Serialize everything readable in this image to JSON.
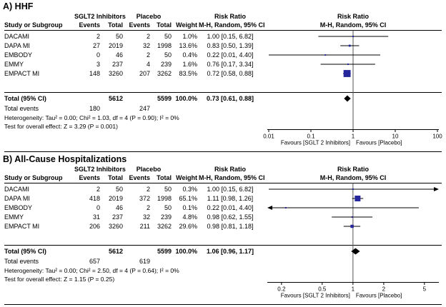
{
  "colors": {
    "marker": "#26269c",
    "diamond": "#000000",
    "line": "#000000"
  },
  "chart_data": [
    {
      "type": "forest",
      "title": "A) HHF",
      "group_headers": {
        "treatment": "SGLT2 Inhibitors",
        "control": "Placebo",
        "risk_ratio": "Risk Ratio"
      },
      "column_headers": {
        "study": "Study or Subgroup",
        "events": "Events",
        "total": "Total",
        "weight": "Weight",
        "mh": "M-H, Random, 95% CI"
      },
      "studies": [
        {
          "name": "DACAMI",
          "events_t": "2",
          "total_t": "50",
          "events_c": "2",
          "total_c": "50",
          "weight": "1.0%",
          "rr_text": "1.00 [0.15, 6.82]",
          "rr": 1.0,
          "lo": 0.15,
          "hi": 6.82
        },
        {
          "name": "DAPA MI",
          "events_t": "27",
          "total_t": "2019",
          "events_c": "32",
          "total_c": "1998",
          "weight": "13.6%",
          "rr_text": "0.83 [0.50, 1.39]",
          "rr": 0.83,
          "lo": 0.5,
          "hi": 1.39
        },
        {
          "name": "EMBODY",
          "events_t": "0",
          "total_t": "46",
          "events_c": "2",
          "total_c": "50",
          "weight": "0.4%",
          "rr_text": "0.22 [0.01, 4.40]",
          "rr": 0.22,
          "lo": 0.01,
          "hi": 4.4
        },
        {
          "name": "EMMY",
          "events_t": "3",
          "total_t": "237",
          "events_c": "4",
          "total_c": "239",
          "weight": "1.6%",
          "rr_text": "0.76 [0.17, 3.34]",
          "rr": 0.76,
          "lo": 0.17,
          "hi": 3.34
        },
        {
          "name": "EMPACT MI",
          "events_t": "148",
          "total_t": "3260",
          "events_c": "207",
          "total_c": "3262",
          "weight": "83.5%",
          "rr_text": "0.72 [0.58, 0.88]",
          "rr": 0.72,
          "lo": 0.58,
          "hi": 0.88
        }
      ],
      "total": {
        "label": "Total (95% CI)",
        "total_t": "5612",
        "total_c": "5599",
        "weight": "100.0%",
        "rr_text": "0.73 [0.61, 0.88]",
        "rr": 0.73,
        "lo": 0.61,
        "hi": 0.88
      },
      "total_events": {
        "label": "Total events",
        "events_t": "180",
        "events_c": "247"
      },
      "heterogeneity": "Heterogeneity: Tau² = 0.00; Chi² = 1.03, df = 4 (P = 0.90); I² = 0%",
      "overall_effect": "Test for overall effect: Z = 3.29 (P = 0.001)",
      "axis": {
        "min": 0.01,
        "max": 100,
        "ticks": [
          "0.01",
          "0.1",
          "1",
          "10",
          "100"
        ]
      },
      "favours_left": "Favours [SGLT 2 Inhibitors]",
      "favours_right": "Favours [Placebo]"
    },
    {
      "type": "forest",
      "title": "B) All-Cause Hospitalizations",
      "group_headers": {
        "treatment": "SGLT2 Inhibitors",
        "control": "Placebo",
        "risk_ratio": "Risk Ratio"
      },
      "column_headers": {
        "study": "Study or Subgroup",
        "events": "Events",
        "total": "Total",
        "weight": "Weight",
        "mh": "M-H, Random, 95% CI"
      },
      "studies": [
        {
          "name": "DACAMI",
          "events_t": "2",
          "total_t": "50",
          "events_c": "2",
          "total_c": "50",
          "weight": "0.3%",
          "rr_text": "1.00 [0.15, 6.82]",
          "rr": 1.0,
          "lo": 0.15,
          "hi": 6.82
        },
        {
          "name": "DAPA MI",
          "events_t": "418",
          "total_t": "2019",
          "events_c": "372",
          "total_c": "1998",
          "weight": "65.1%",
          "rr_text": "1.11 [0.98, 1.26]",
          "rr": 1.11,
          "lo": 0.98,
          "hi": 1.26
        },
        {
          "name": "EMBODY",
          "events_t": "0",
          "total_t": "46",
          "events_c": "2",
          "total_c": "50",
          "weight": "0.1%",
          "rr_text": "0.22 [0.01, 4.40]",
          "rr": 0.22,
          "lo": 0.01,
          "hi": 4.4
        },
        {
          "name": "EMMY",
          "events_t": "31",
          "total_t": "237",
          "events_c": "32",
          "total_c": "239",
          "weight": "4.8%",
          "rr_text": "0.98 [0.62, 1.55]",
          "rr": 0.98,
          "lo": 0.62,
          "hi": 1.55
        },
        {
          "name": "EMPACT MI",
          "events_t": "206",
          "total_t": "3260",
          "events_c": "211",
          "total_c": "3262",
          "weight": "29.6%",
          "rr_text": "0.98 [0.81, 1.18]",
          "rr": 0.98,
          "lo": 0.81,
          "hi": 1.18
        }
      ],
      "total": {
        "label": "Total (95% CI)",
        "total_t": "5612",
        "total_c": "5599",
        "weight": "100.0%",
        "rr_text": "1.06 [0.96, 1.17]",
        "rr": 1.06,
        "lo": 0.96,
        "hi": 1.17
      },
      "total_events": {
        "label": "Total events",
        "events_t": "657",
        "events_c": "619"
      },
      "heterogeneity": "Heterogeneity: Tau² = 0.00; Chi² = 2.50, df = 4 (P = 0.64); I² = 0%",
      "overall_effect": "Test for overall effect: Z = 1.15 (P = 0.25)",
      "axis": {
        "min": 0.15,
        "max": 6.7,
        "ticks": [
          "0.2",
          "0.5",
          "1",
          "2",
          "5"
        ]
      },
      "favours_left": "Favours [SGLT 2 Inhibitors]",
      "favours_right": "Favours [Placebo]"
    }
  ]
}
